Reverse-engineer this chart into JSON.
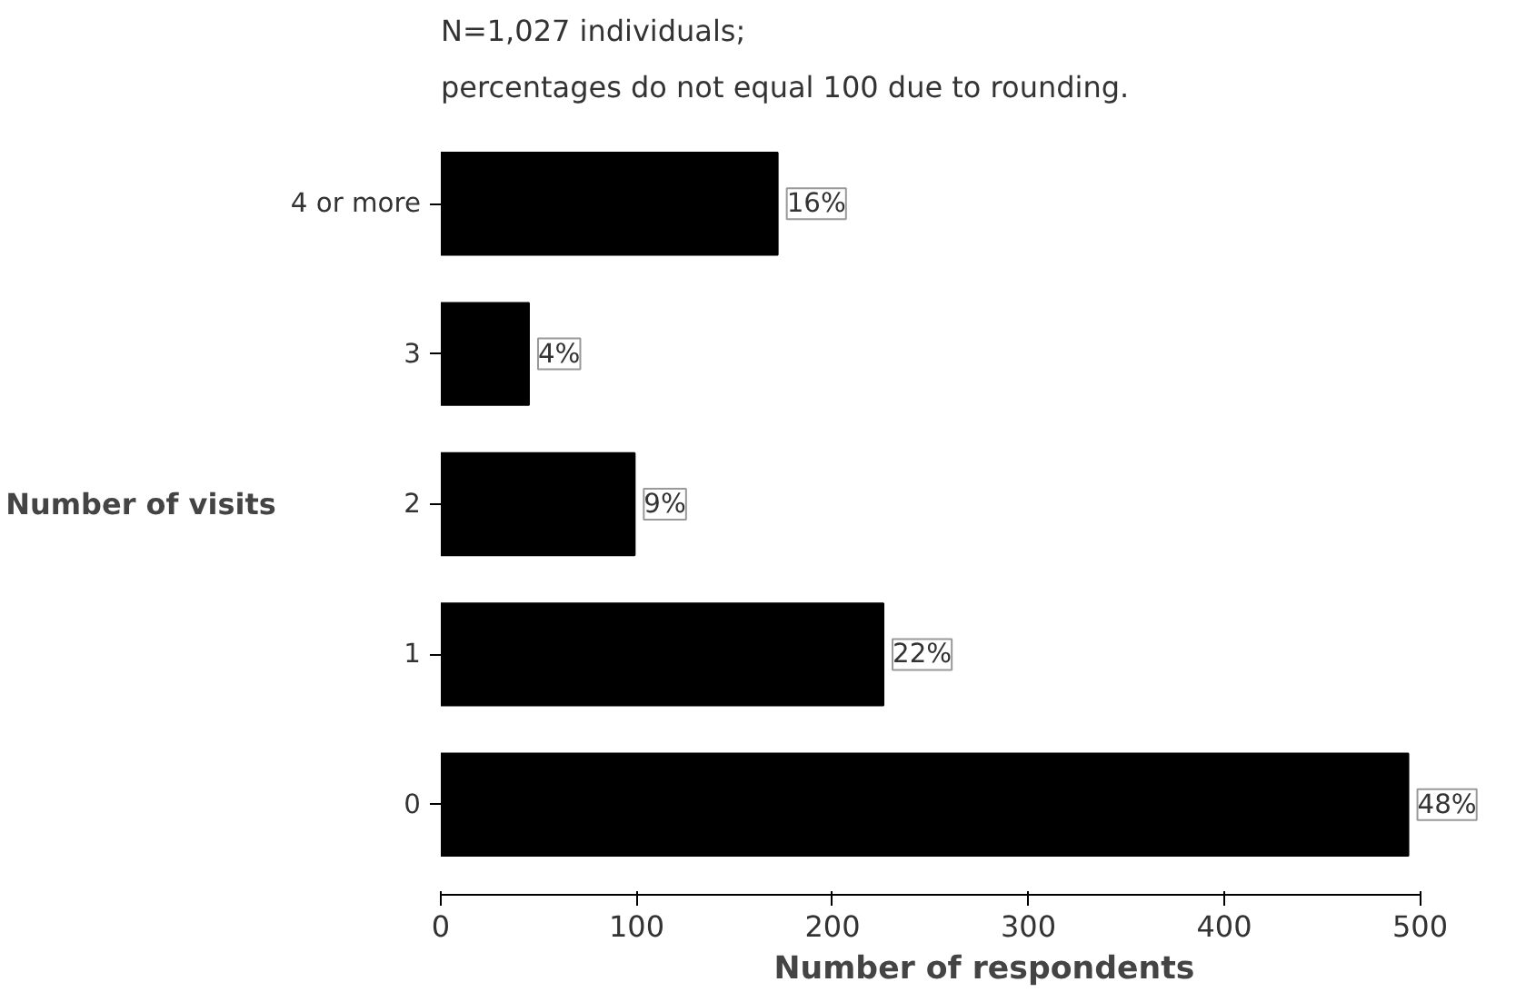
{
  "chart_data": {
    "type": "bar",
    "orientation": "horizontal",
    "title": "N=1,027 individuals;",
    "subtitle": "percentages do not equal 100 due to rounding.",
    "xlabel": "Number of respondents",
    "ylabel": "Number of visits",
    "categories": [
      "4 or more",
      "3",
      "2",
      "1",
      "0"
    ],
    "values": [
      172,
      45,
      99,
      226,
      494
    ],
    "annotations": [
      {
        "text": "16%",
        "x": 172,
        "y": "4 or more"
      },
      {
        "text": "4%",
        "x": 45,
        "y": "3"
      },
      {
        "text": "9%",
        "x": 99,
        "y": "2"
      },
      {
        "text": "22%",
        "x": 226,
        "y": "1"
      },
      {
        "text": "48%",
        "x": 494,
        "y": "0"
      }
    ],
    "color": "#000000",
    "xlim": [
      0,
      500
    ],
    "xticks": [
      0,
      100,
      200,
      300,
      400,
      500
    ],
    "grid": false
  }
}
